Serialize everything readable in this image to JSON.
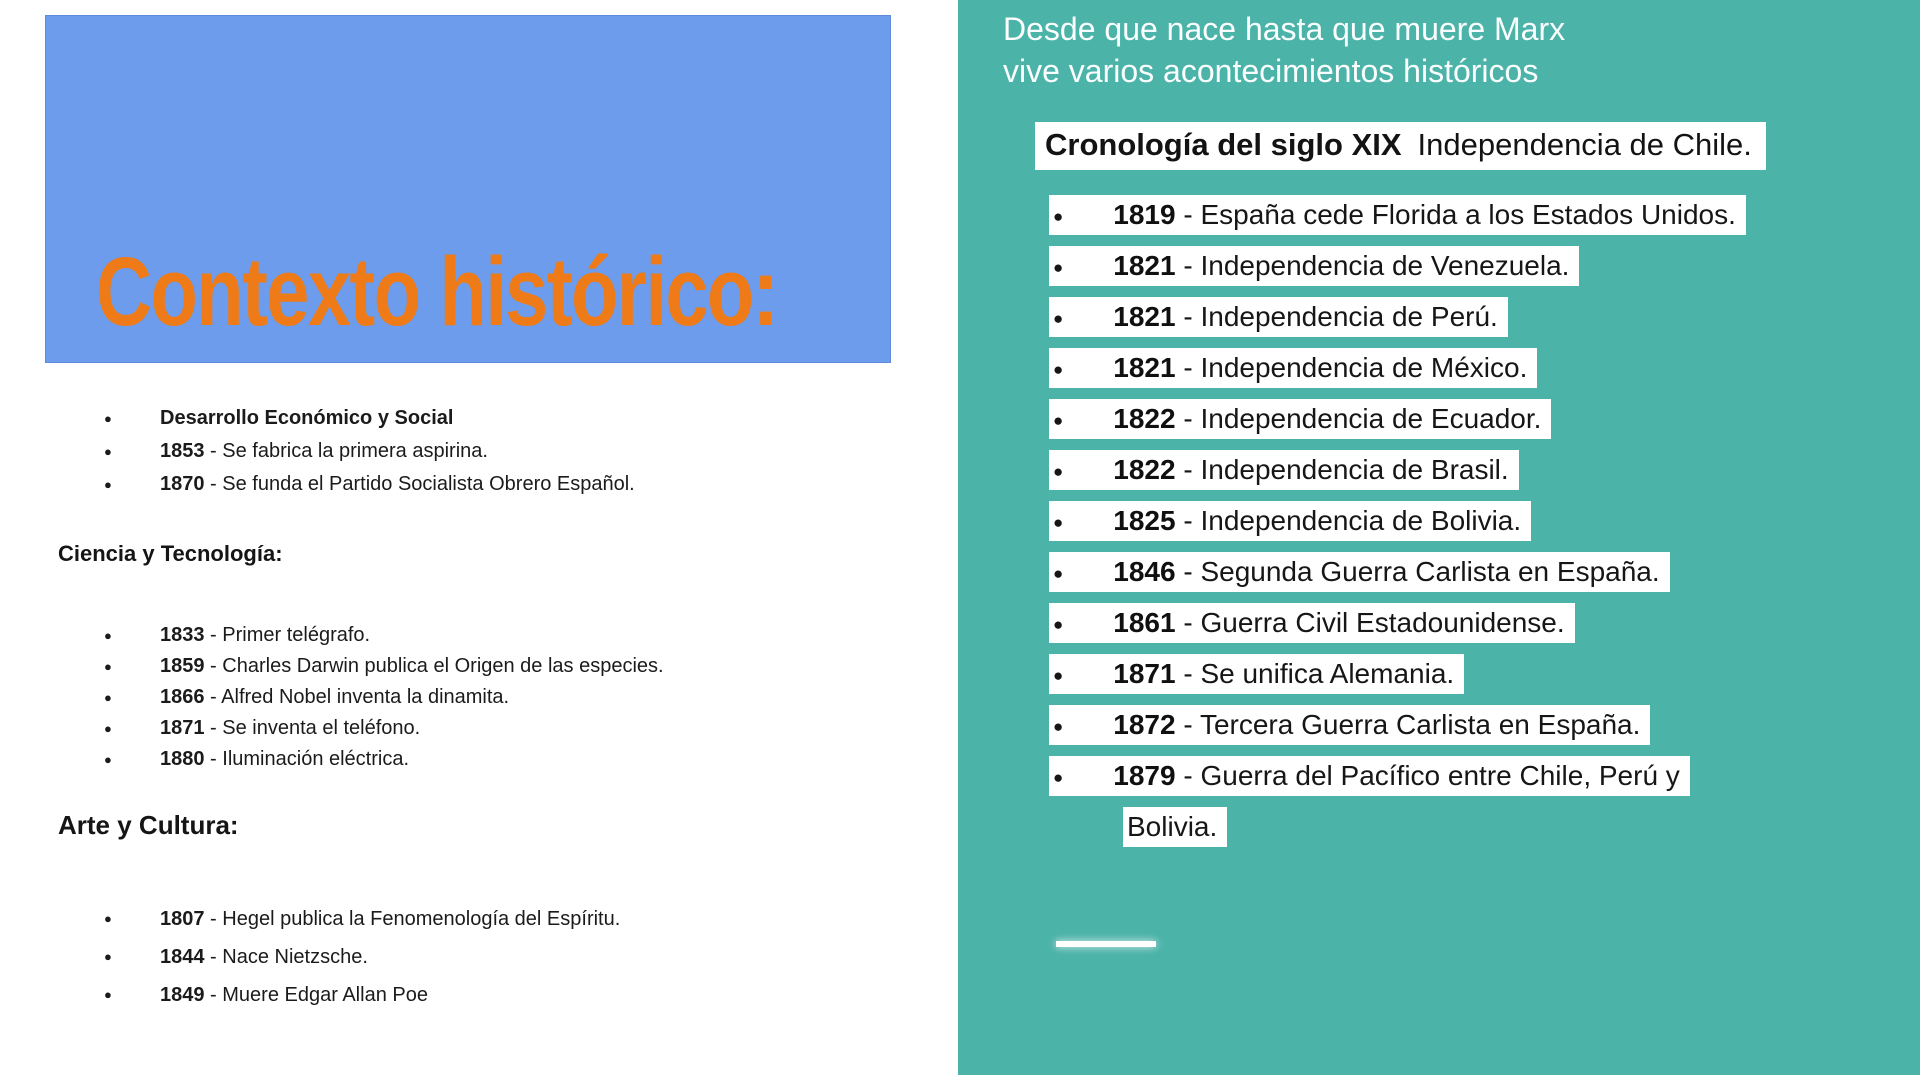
{
  "colors": {
    "left_banner_bg": "#6c9ceb",
    "title_orange": "#ee7b18",
    "right_panel_bg": "#4cb3a9",
    "highlight": "#ffffff",
    "body_text": "#1b1b1b"
  },
  "left": {
    "title": "Contexto histórico:",
    "economy_items": [
      {
        "year": "Desarrollo Económico y Social",
        "text": ""
      },
      {
        "year": "1853",
        "text": " - Se fabrica la primera aspirina."
      },
      {
        "year": "1870",
        "text": " - Se funda el Partido Socialista Obrero Español."
      }
    ],
    "science_heading": "Ciencia y Tecnología:",
    "science_items": [
      {
        "year": "1833",
        "text": " - Primer telégrafo."
      },
      {
        "year": "1859",
        "text": " - Charles Darwin publica el Origen de las especies."
      },
      {
        "year": "1866",
        "text": " - Alfred Nobel inventa la dinamita."
      },
      {
        "year": "1871",
        "text": " - Se inventa el teléfono."
      },
      {
        "year": "1880",
        "text": " - Iluminación eléctrica."
      }
    ],
    "arts_heading": "Arte y Cultura:",
    "arts_items": [
      {
        "year": "1807",
        "text": " - Hegel publica la Fenomenología del Espíritu."
      },
      {
        "year": "1844",
        "text": " - Nace Nietzsche."
      },
      {
        "year": "1849",
        "text": " - Muere Edgar Allan Poe"
      }
    ]
  },
  "right": {
    "intro": "Desde que nace hasta que muere Marx vive varios acontecimientos históricos",
    "chronology_bold": "Cronología del siglo XIX",
    "chronology_rest": "Independencia de Chile.",
    "items": [
      {
        "year": "1819",
        "text": " - España cede Florida a los Estados Unidos."
      },
      {
        "year": "1821",
        "text": " - Independencia de Venezuela."
      },
      {
        "year": "1821",
        "text": " - Independencia de Perú."
      },
      {
        "year": "1821",
        "text": " - Independencia de México."
      },
      {
        "year": "1822",
        "text": " - Independencia de Ecuador."
      },
      {
        "year": "1822",
        "text": " - Independencia de Brasil."
      },
      {
        "year": "1825",
        "text": " - Independencia de Bolivia."
      },
      {
        "year": "1846",
        "text": " - Segunda Guerra Carlista en España."
      },
      {
        "year": "1861",
        "text": " - Guerra Civil Estadounidense."
      },
      {
        "year": "1871",
        "text": " - Se unifica Alemania."
      },
      {
        "year": "1872",
        "text": " - Tercera Guerra Carlista en España."
      },
      {
        "year": "1879",
        "text": " - Guerra del Pacífico entre Chile, Perú y Bolivia."
      }
    ]
  }
}
